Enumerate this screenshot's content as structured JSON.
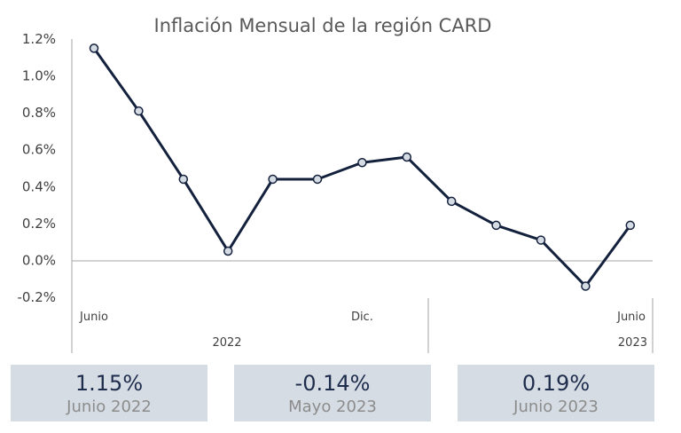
{
  "chart_data": {
    "type": "line",
    "title": "Inflación Mensual de la región CARD",
    "y_ticks": [
      "1.2%",
      "1.0%",
      "0.8%",
      "0.6%",
      "0.4%",
      "0.2%",
      "0.0%",
      "-0.2%"
    ],
    "ylim": [
      -0.2,
      1.2
    ],
    "categories": [
      "Junio",
      "",
      "",
      "",
      "",
      "",
      "Dic.",
      "",
      "",
      "",
      "",
      "",
      "Junio"
    ],
    "year_labels": [
      "2022",
      "2023"
    ],
    "series": [
      {
        "values": [
          1.15,
          0.81,
          0.44,
          0.05,
          0.44,
          0.44,
          0.53,
          0.56,
          0.32,
          0.19,
          0.11,
          -0.14,
          0.19
        ]
      }
    ],
    "grid": false,
    "colors": {
      "line": "#14213d",
      "marker_fill": "#d6dce4",
      "axis": "#a6a6a6"
    }
  },
  "cards": [
    {
      "value": "1.15%",
      "label": "Junio 2022"
    },
    {
      "value": "-0.14%",
      "label": "Mayo 2023"
    },
    {
      "value": "0.19%",
      "label": "Junio 2023"
    }
  ]
}
